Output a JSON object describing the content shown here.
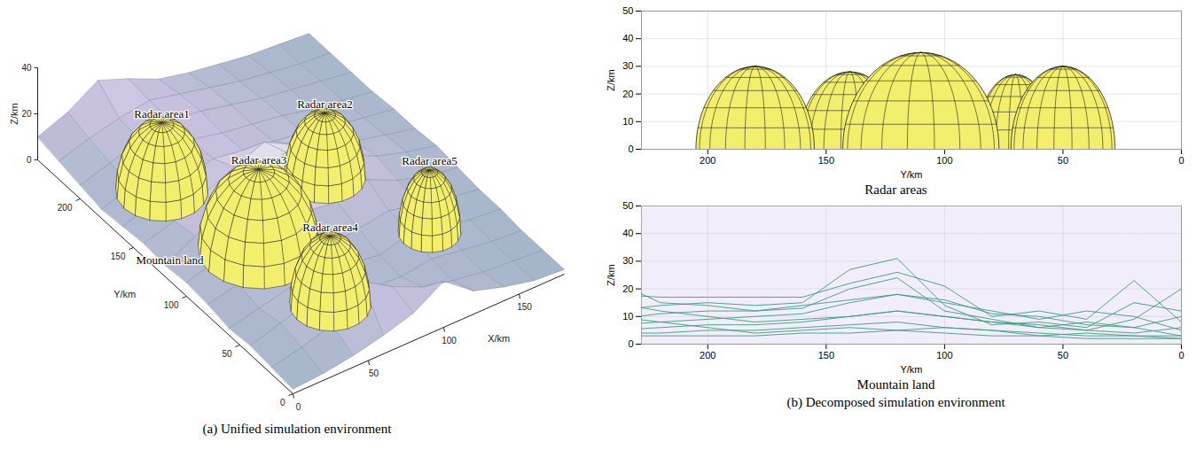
{
  "chart_data": [
    {
      "type": "surface3d",
      "caption": "(a) Unified simulation environment",
      "x_label": "X/km",
      "y_label": "Y/km",
      "z_label": "Z/km",
      "xlim": [
        0,
        180
      ],
      "ylim": [
        0,
        240
      ],
      "zlim": [
        0,
        40
      ],
      "xticks": [
        0,
        50,
        100,
        150
      ],
      "yticks": [
        0,
        50,
        100,
        150,
        200
      ],
      "zticks": [
        0,
        20,
        40
      ],
      "terrain": {
        "x": [
          0,
          20,
          40,
          60,
          80,
          100,
          120,
          140,
          160,
          180
        ],
        "y": [
          0,
          20,
          40,
          60,
          80,
          100,
          120,
          140,
          160,
          180,
          200,
          220,
          240
        ],
        "z": [
          [
            2,
            3,
            5,
            8,
            12,
            20,
            10,
            6,
            3,
            2
          ],
          [
            3,
            6,
            10,
            23,
            15,
            9,
            6,
            4,
            3,
            2
          ],
          [
            4,
            8,
            12,
            9,
            6,
            5,
            7,
            5,
            3,
            2
          ],
          [
            3,
            6,
            9,
            12,
            8,
            6,
            10,
            7,
            4,
            3
          ],
          [
            5,
            8,
            12,
            10,
            7,
            9,
            11,
            8,
            5,
            3
          ],
          [
            6,
            10,
            15,
            21,
            14,
            12,
            16,
            10,
            6,
            4
          ],
          [
            5,
            12,
            18,
            26,
            31,
            24,
            18,
            12,
            8,
            5
          ],
          [
            6,
            10,
            16,
            22,
            27,
            20,
            15,
            10,
            7,
            4
          ],
          [
            5,
            9,
            14,
            17,
            15,
            13,
            11,
            8,
            6,
            4
          ],
          [
            4,
            8,
            12,
            17,
            14,
            12,
            10,
            7,
            5,
            3
          ],
          [
            6,
            10,
            14,
            17,
            15,
            12,
            9,
            7,
            5,
            3
          ],
          [
            8,
            12,
            15,
            17,
            14,
            11,
            8,
            6,
            4,
            3
          ],
          [
            10,
            15,
            23,
            18,
            12,
            9,
            7,
            5,
            4,
            3
          ]
        ]
      },
      "radars": [
        {
          "name": "Radar area1",
          "x": 40,
          "y": 180,
          "radius": 25,
          "height": 30
        },
        {
          "name": "Radar area2",
          "x": 120,
          "y": 140,
          "radius": 22,
          "height": 28
        },
        {
          "name": "Radar area3",
          "x": 55,
          "y": 110,
          "radius": 33,
          "height": 35
        },
        {
          "name": "Radar area4",
          "x": 60,
          "y": 50,
          "radius": 22,
          "height": 30
        },
        {
          "name": "Radar area5",
          "x": 140,
          "y": 70,
          "radius": 17,
          "height": 27
        }
      ],
      "annotations": [
        {
          "text": "Mountain land",
          "x": 10,
          "y": 130
        }
      ]
    },
    {
      "type": "radar_profile",
      "title": "Radar areas",
      "x_label": "Y/km",
      "y_label": "Z/km",
      "xlim": [
        228,
        0
      ],
      "ylim": [
        0,
        50
      ],
      "xticks": [
        200,
        150,
        100,
        50,
        0
      ],
      "yticks": [
        0,
        10,
        20,
        30,
        40,
        50
      ],
      "grid": true
    },
    {
      "type": "terrain_profile",
      "title": "Mountain land",
      "caption": "(b) Decomposed simulation environment",
      "x_label": "Y/km",
      "y_label": "Z/km",
      "xlim": [
        228,
        0
      ],
      "ylim": [
        0,
        50
      ],
      "xticks": [
        200,
        150,
        100,
        50,
        0
      ],
      "yticks": [
        0,
        10,
        20,
        30,
        40,
        50
      ],
      "grid": true
    }
  ]
}
